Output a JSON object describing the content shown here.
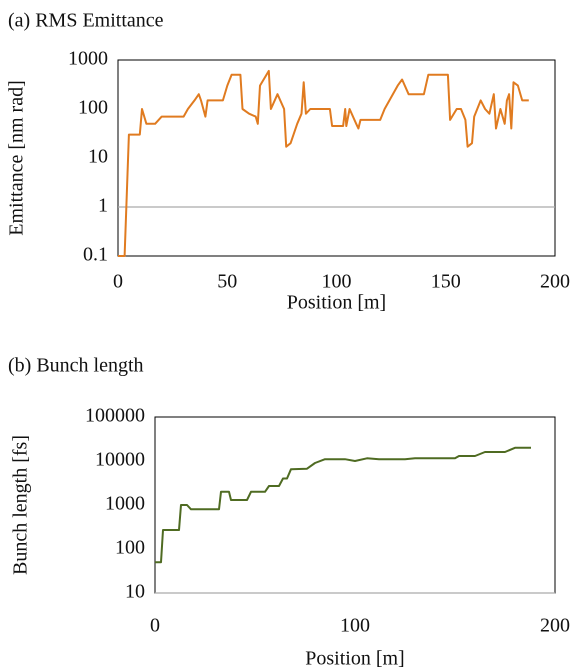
{
  "chart_data": [
    {
      "type": "line",
      "title": "(a) RMS Emittance",
      "xlabel": "Position [m]",
      "ylabel": "Emittance [nm rad]",
      "log_y": true,
      "x_axis_at": 1,
      "xlim": [
        0,
        200
      ],
      "xticks": [
        0,
        50,
        100,
        150,
        200
      ],
      "ylim": [
        0.1,
        1000
      ],
      "yticks": [
        0.1,
        1,
        10,
        100,
        1000
      ],
      "series": [
        {
          "color": "#e07b20",
          "x": [
            0,
            3,
            5,
            10,
            11,
            13,
            17,
            20,
            30,
            32,
            35,
            37,
            38,
            40,
            41,
            48,
            50,
            52,
            56,
            57,
            60,
            63,
            64,
            65,
            69,
            70,
            73,
            76,
            77,
            79,
            82,
            84,
            85,
            86,
            88,
            97,
            98,
            103,
            104,
            104.5,
            106,
            109,
            110,
            111,
            120,
            122,
            128,
            130,
            133,
            136,
            140,
            142,
            151,
            152,
            155,
            157,
            159,
            160,
            162,
            163,
            166,
            168,
            170,
            172,
            173,
            175,
            177,
            178,
            179,
            180,
            181,
            183,
            185,
            188
          ],
          "values": [
            0.1,
            0.1,
            30,
            30,
            100,
            50,
            50,
            70,
            70,
            100,
            150,
            200,
            150,
            70,
            150,
            150,
            300,
            500,
            500,
            100,
            80,
            70,
            50,
            300,
            600,
            100,
            200,
            100,
            17,
            20,
            50,
            80,
            350,
            80,
            100,
            100,
            45,
            45,
            100,
            45,
            100,
            50,
            40,
            60,
            60,
            100,
            300,
            400,
            200,
            200,
            200,
            500,
            500,
            60,
            100,
            100,
            60,
            17,
            20,
            70,
            150,
            100,
            80,
            200,
            40,
            100,
            50,
            150,
            200,
            40,
            350,
            300,
            150,
            150
          ]
        }
      ]
    },
    {
      "type": "line",
      "title": "(b) Bunch length",
      "xlabel": "Position [m]",
      "ylabel": "Bunch length [fs]",
      "log_y": true,
      "x_axis_at": 10,
      "xlim": [
        0,
        200
      ],
      "xticks": [
        0,
        100,
        200
      ],
      "ylim": [
        10,
        100000
      ],
      "yticks": [
        10,
        100,
        1000,
        10000,
        100000
      ],
      "series": [
        {
          "color": "#4f6b22",
          "x": [
            0,
            3,
            4,
            12,
            13,
            16,
            18,
            32,
            33,
            37,
            38,
            46,
            48,
            55,
            57,
            62,
            64,
            66,
            68,
            76,
            80,
            85,
            95,
            100,
            106,
            112,
            125,
            130,
            150,
            152,
            160,
            165,
            175,
            180,
            188
          ],
          "values": [
            50,
            50,
            270,
            270,
            1000,
            1000,
            800,
            800,
            2000,
            2000,
            1300,
            1300,
            2000,
            2000,
            2700,
            2700,
            4000,
            4000,
            6500,
            6700,
            9000,
            11000,
            11000,
            10000,
            11500,
            11000,
            11000,
            11500,
            11500,
            13000,
            13000,
            16000,
            16000,
            20000,
            20000
          ]
        }
      ]
    }
  ]
}
